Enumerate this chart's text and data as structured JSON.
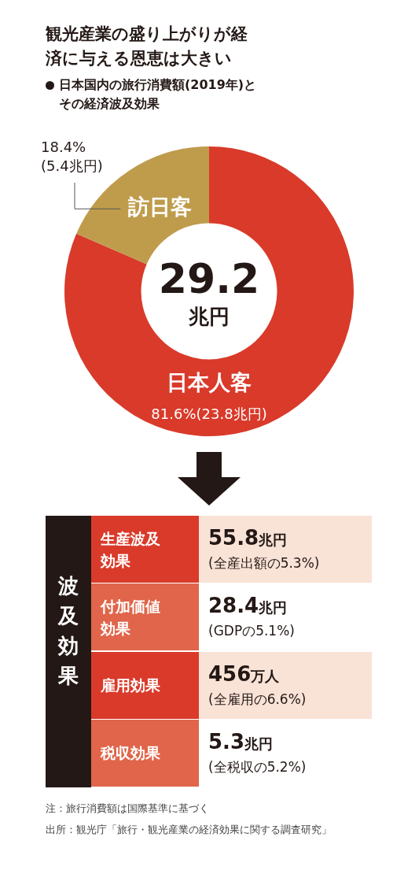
{
  "chart_data": [
    {
      "type": "donut",
      "title": "観光産業の盛り上がりが経済に与える恩恵は大きい",
      "subtitle": "日本国内の旅行消費額(2019年)とその経済波及効果",
      "categories": [
        "日本人客",
        "訪日客"
      ],
      "values": [
        23.8,
        5.4
      ],
      "colors": [
        "#d93a2a",
        "#bf9c4c"
      ],
      "value_labels": [
        "81.6%(23.8兆円)",
        "18.4%\n(5.4兆円)"
      ],
      "annotations": [
        "29.2\n兆円"
      ],
      "legend": false
    },
    {
      "type": "other",
      "title": "波及効果",
      "annotations": [
        "生産波及効果",
        "55.8兆円",
        "(全産出額の5.3%)",
        "付加価値効果",
        "28.4兆円",
        "(GDPの5.1%)",
        "雇用効果",
        "456万人",
        "(全雇用の6.6%)",
        "税収効果",
        "5.3兆円",
        "(全税収の5.2%)",
        "注：旅行消費額は国際基準に基づく",
        "出所：観光庁「旅行・観光産業の経済効果に関する調査研究」"
      ]
    }
  ]
}
